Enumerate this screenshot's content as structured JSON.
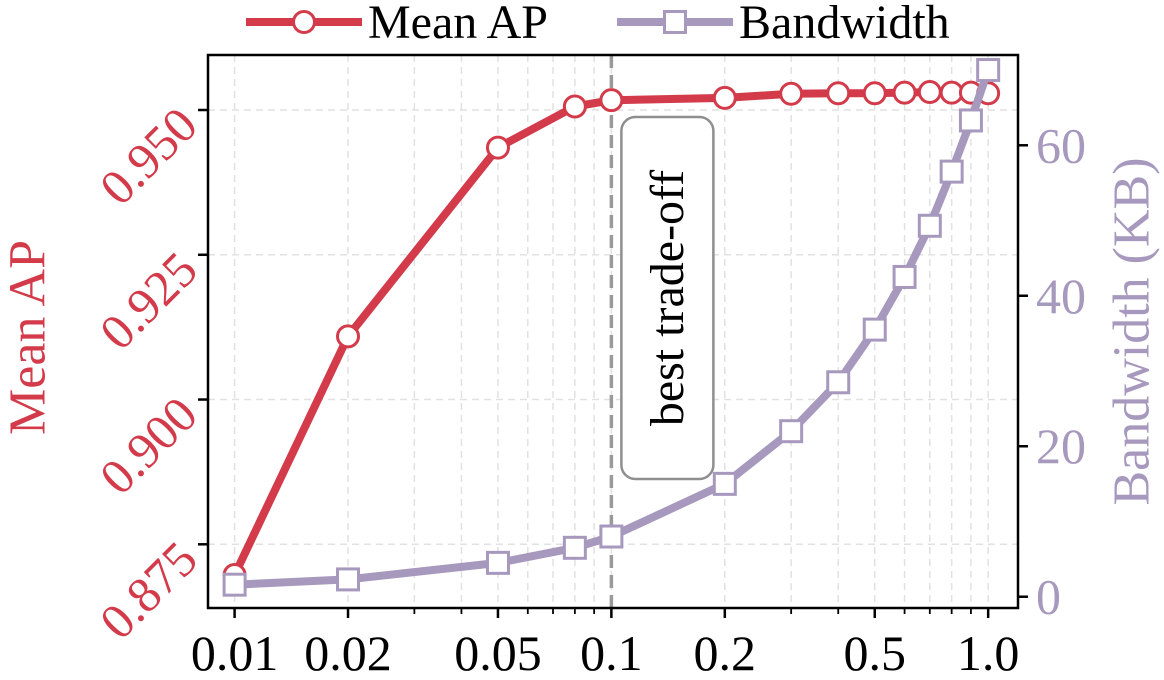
{
  "chart_data": {
    "type": "line",
    "title": "",
    "xlabel": "",
    "x_scale": "log",
    "x": [
      0.01,
      0.02,
      0.05,
      0.08,
      0.1,
      0.2,
      0.3,
      0.4,
      0.5,
      0.6,
      0.7,
      0.8,
      0.9,
      1.0
    ],
    "x_ticks": [
      0.01,
      0.02,
      0.05,
      0.1,
      0.2,
      0.5,
      1.0
    ],
    "x_tick_labels": [
      "0.01",
      "0.02",
      "0.05",
      "0.1",
      "0.2",
      "0.5",
      "1.0"
    ],
    "xlim": [
      0.0085,
      1.2
    ],
    "left_axis": {
      "label": "Mean AP",
      "ylim": [
        0.864,
        0.9595
      ],
      "ticks": [
        0.875,
        0.9,
        0.925,
        0.95
      ],
      "tick_labels": [
        "0.875",
        "0.900",
        "0.925",
        "0.950"
      ],
      "color": "#d33a4a"
    },
    "right_axis": {
      "label": "Bandwidth (KB)",
      "ylim": [
        -1.5,
        72
      ],
      "ticks": [
        0,
        20,
        40,
        60
      ],
      "tick_labels": [
        "0",
        "20",
        "40",
        "60"
      ],
      "color": "#a798bd"
    },
    "series": [
      {
        "name": "Mean AP",
        "axis": "left",
        "marker": "circle",
        "color": "#d33a4a",
        "values": [
          0.8697,
          0.9109,
          0.9435,
          0.9506,
          0.9517,
          0.9521,
          0.9528,
          0.9529,
          0.9529,
          0.953,
          0.9531,
          0.953,
          0.953,
          0.9529
        ]
      },
      {
        "name": "Bandwidth",
        "axis": "right",
        "marker": "square",
        "color": "#a798bd",
        "values": [
          1.6,
          2.3,
          4.5,
          6.5,
          8.0,
          15.0,
          22.0,
          28.5,
          35.5,
          42.5,
          49.3,
          56.5,
          63.3,
          70.0
        ]
      }
    ],
    "annotation": {
      "text": "best trade-off",
      "x": 0.1,
      "line_style": "dashed"
    },
    "legend": {
      "position": "top",
      "entries": [
        "Mean AP",
        "Bandwidth"
      ]
    },
    "grid": true
  }
}
